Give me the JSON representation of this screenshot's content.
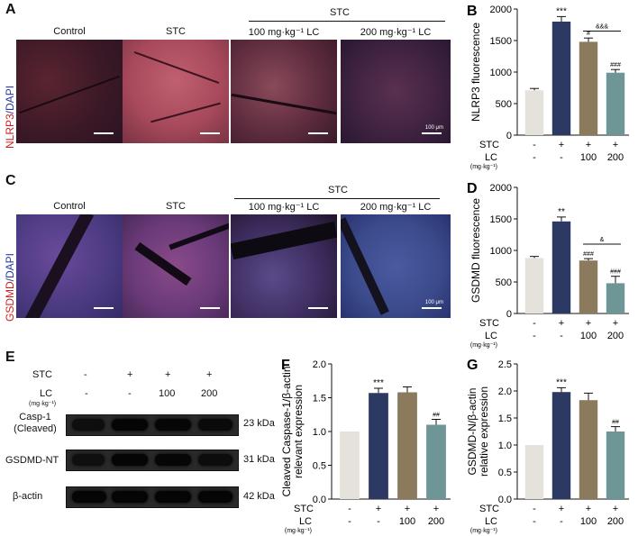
{
  "panels": {
    "A": {
      "letter": "A",
      "ylabel_red": "NLRP3",
      "ylabel_blue": "/DAPI",
      "group_header": "STC",
      "columns": [
        "Control",
        "STC",
        "100 mg·kg⁻¹ LC",
        "200 mg·kg⁻¹ LC"
      ],
      "scale_text": "100 μm"
    },
    "C": {
      "letter": "C",
      "ylabel_red": "GSDMD",
      "ylabel_blue": "/DAPI",
      "group_header": "STC",
      "columns": [
        "Control",
        "STC",
        "100 mg·kg⁻¹ LC",
        "200 mg·kg⁻¹ LC"
      ],
      "scale_text": "100 μm"
    },
    "E": {
      "letter": "E",
      "row_labels": [
        "STC",
        "LC"
      ],
      "row_unit": "(mg·kg⁻¹)",
      "stc_signs": [
        "-",
        "+",
        "+",
        "+"
      ],
      "lc_signs": [
        "-",
        "-",
        "100",
        "200"
      ],
      "blots": [
        {
          "label": "Casp-1\n(Cleaved)",
          "kda": "23 kDa"
        },
        {
          "label": "GSDMD-NT",
          "kda": "31 kDa"
        },
        {
          "label": "β-actin",
          "kda": "42 kDa"
        }
      ]
    }
  },
  "colors": {
    "control": "#e4e2da",
    "stc": "#2c3a63",
    "lc100": "#8b7a5b",
    "lc200": "#6f9696",
    "red_label": "#cc2222",
    "blue_label": "#2a3aa0"
  },
  "chart_data": [
    {
      "id": "B",
      "letter": "B",
      "type": "bar",
      "ylabel": "NLRP3 fluorescence",
      "categories": [
        "Control",
        "STC",
        "100",
        "200"
      ],
      "values": [
        710,
        1800,
        1480,
        990
      ],
      "errors": [
        30,
        80,
        60,
        50
      ],
      "ylim": [
        0,
        2000
      ],
      "yticks": [
        0,
        500,
        1000,
        1500,
        2000
      ],
      "annotations": [
        "",
        "***",
        "#",
        "###"
      ],
      "bracket": {
        "from": 2,
        "to": 3,
        "label": "&&&",
        "y": 1650
      },
      "row_stc": [
        "-",
        "+",
        "+",
        "+"
      ],
      "row_lc": [
        "-",
        "-",
        "100",
        "200"
      ],
      "row_labels": [
        "STC",
        "LC"
      ],
      "row_unit": "(mg·kg⁻¹)"
    },
    {
      "id": "D",
      "letter": "D",
      "type": "bar",
      "ylabel": "GSDMD fluorescence",
      "categories": [
        "Control",
        "STC",
        "100",
        "200"
      ],
      "values": [
        880,
        1460,
        840,
        480
      ],
      "errors": [
        25,
        70,
        30,
        110
      ],
      "ylim": [
        0,
        2000
      ],
      "yticks": [
        0,
        500,
        1000,
        1500,
        2000
      ],
      "annotations": [
        "",
        "**",
        "###",
        "###"
      ],
      "bracket": {
        "from": 2,
        "to": 3,
        "label": "&",
        "y": 1100
      },
      "row_stc": [
        "-",
        "+",
        "+",
        "+"
      ],
      "row_lc": [
        "-",
        "-",
        "100",
        "200"
      ],
      "row_labels": [
        "STC",
        "LC"
      ],
      "row_unit": "(mg·kg⁻¹)"
    },
    {
      "id": "F",
      "letter": "F",
      "type": "bar",
      "ylabel": "Cleaved Caspase-1/β-actin\nrelevant expression",
      "categories": [
        "Control",
        "STC",
        "100",
        "200"
      ],
      "values": [
        1.0,
        1.57,
        1.58,
        1.1
      ],
      "errors": [
        0,
        0.07,
        0.08,
        0.08
      ],
      "ylim": [
        0,
        2.0
      ],
      "yticks": [
        0.0,
        0.5,
        1.0,
        1.5,
        2.0
      ],
      "annotations": [
        "",
        "***",
        "",
        "##"
      ],
      "bracket": null,
      "row_stc": [
        "-",
        "+",
        "+",
        "+"
      ],
      "row_lc": [
        "-",
        "-",
        "100",
        "200"
      ],
      "row_labels": [
        "STC",
        "LC"
      ],
      "row_unit": "(mg·kg⁻¹)"
    },
    {
      "id": "G",
      "letter": "G",
      "type": "bar",
      "ylabel": "GSDMD-N/β-actin\nrelative expression",
      "categories": [
        "Control",
        "STC",
        "100",
        "200"
      ],
      "values": [
        1.0,
        1.98,
        1.83,
        1.25
      ],
      "errors": [
        0,
        0.08,
        0.13,
        0.09
      ],
      "ylim": [
        0,
        2.5
      ],
      "yticks": [
        0.0,
        0.5,
        1.0,
        1.5,
        2.0,
        2.5
      ],
      "annotations": [
        "",
        "***",
        "",
        "##"
      ],
      "bracket": null,
      "row_stc": [
        "-",
        "+",
        "+",
        "+"
      ],
      "row_lc": [
        "-",
        "-",
        "100",
        "200"
      ],
      "row_labels": [
        "STC",
        "LC"
      ],
      "row_unit": "(mg·kg⁻¹)"
    }
  ]
}
